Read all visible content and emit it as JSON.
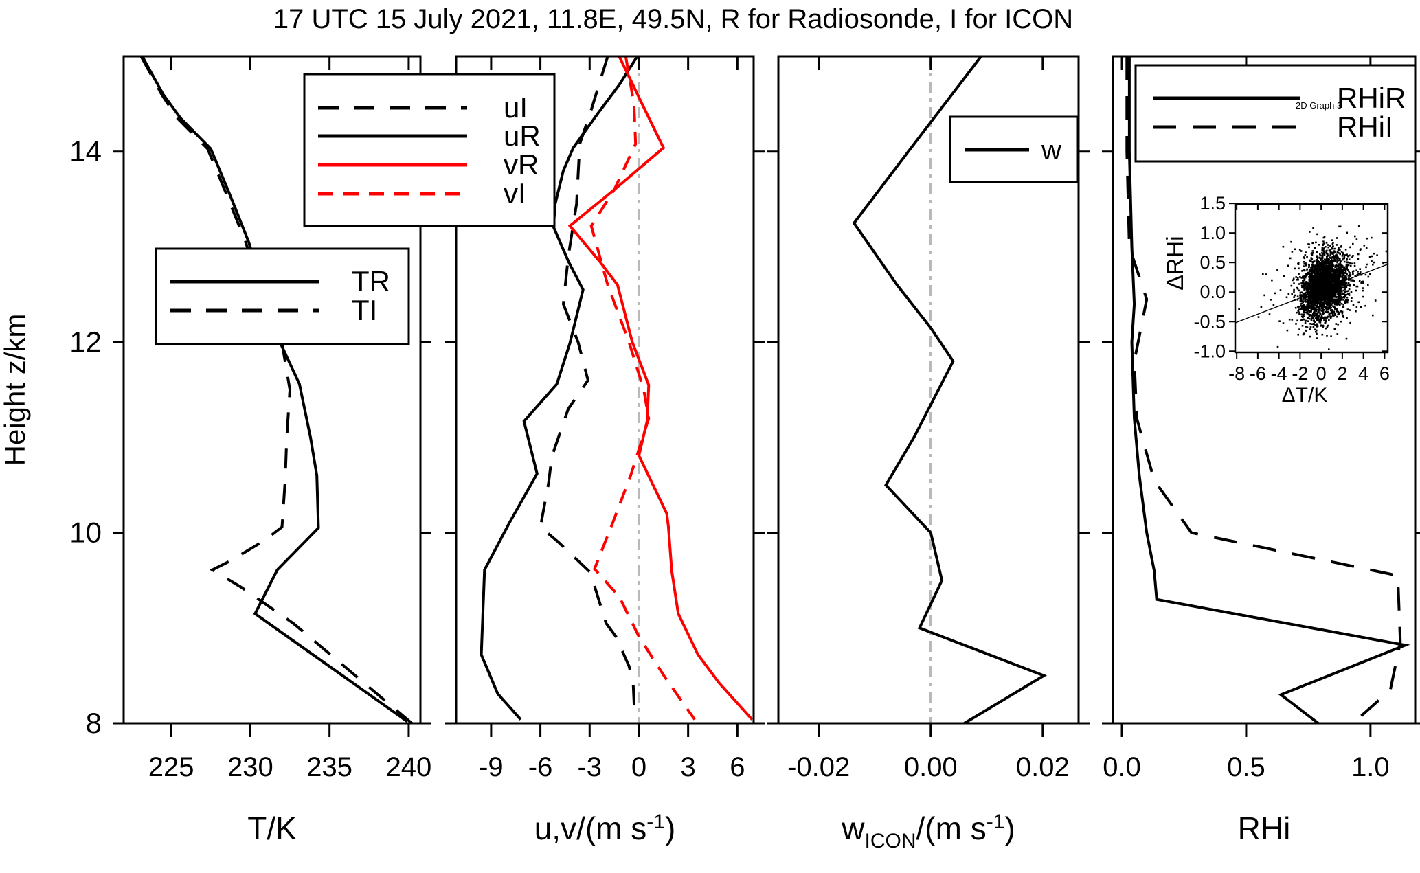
{
  "title": "17 UTC 15 July 2021, 11.8E, 49.5N, R for Radiosonde, I for ICON",
  "height_axis": {
    "label": "Height z/km",
    "ticks": [
      {
        "v": 14,
        "label": "14"
      },
      {
        "v": 12,
        "label": "12"
      },
      {
        "v": 10,
        "label": "10"
      },
      {
        "v": 8,
        "label": "8"
      }
    ],
    "range": [
      8,
      15
    ]
  },
  "colors": {
    "black": "#000000",
    "red": "#fe0000",
    "zero_line_gray": "#b9b9b9"
  },
  "chart_data": [
    {
      "panel": "temperature",
      "type": "line",
      "xlabel_parts": [
        {
          "text": "T/K"
        }
      ],
      "xlim": [
        222.0,
        240.74
      ],
      "x_ticks": [
        {
          "v": 225,
          "label": "225"
        },
        {
          "v": 230,
          "label": "230"
        },
        {
          "v": 235,
          "label": "235"
        },
        {
          "v": 240,
          "label": "240"
        }
      ],
      "ylabel": "Height z/km",
      "ylim": [
        8,
        15
      ],
      "zero_line": false,
      "legend": {
        "entries": [
          {
            "label": "TR",
            "color": "#000000",
            "style": "solid"
          },
          {
            "label": "TI",
            "color": "#000000",
            "style": "long-dash"
          }
        ]
      },
      "series": [
        {
          "name": "TR",
          "color": "#000000",
          "style": "solid",
          "points": [
            [
              223.2,
              15.0
            ],
            [
              223.3,
              14.96
            ],
            [
              224.5,
              14.6
            ],
            [
              225.6,
              14.35
            ],
            [
              227.5,
              14.03
            ],
            [
              228.7,
              13.55
            ],
            [
              229.9,
              13.05
            ],
            [
              230.9,
              12.5
            ],
            [
              231.9,
              11.99
            ],
            [
              233.1,
              11.56
            ],
            [
              233.8,
              11.0
            ],
            [
              234.2,
              10.6
            ],
            [
              234.3,
              10.05
            ],
            [
              231.7,
              9.61
            ],
            [
              230.3,
              9.15
            ],
            [
              239.9,
              8.02
            ]
          ]
        },
        {
          "name": "TI",
          "color": "#000000",
          "style": "long-dash",
          "points": [
            [
              223.1,
              15.0
            ],
            [
              224.4,
              14.6
            ],
            [
              225.4,
              14.35
            ],
            [
              227.3,
              14.03
            ],
            [
              228.5,
              13.55
            ],
            [
              229.7,
              13.05
            ],
            [
              230.8,
              12.5
            ],
            [
              232.0,
              11.99
            ],
            [
              232.5,
              11.5
            ],
            [
              232.3,
              11.0
            ],
            [
              232.2,
              10.55
            ],
            [
              232.0,
              10.06
            ],
            [
              230.9,
              9.92
            ],
            [
              228.8,
              9.71
            ],
            [
              227.6,
              9.61
            ],
            [
              229.4,
              9.43
            ],
            [
              232.7,
              9.05
            ],
            [
              240.2,
              8.0
            ]
          ]
        }
      ]
    },
    {
      "panel": "wind",
      "type": "line",
      "xlabel_parts": [
        {
          "text": "u,v/(m s"
        },
        {
          "text": "-1",
          "pos": "sup"
        },
        {
          "text": ")"
        }
      ],
      "xlim": [
        -11.13,
        6.99
      ],
      "x_ticks": [
        {
          "v": -9,
          "label": "-9"
        },
        {
          "v": -6,
          "label": "-6"
        },
        {
          "v": -3,
          "label": "-3"
        },
        {
          "v": 0,
          "label": "0"
        },
        {
          "v": 3,
          "label": "3"
        },
        {
          "v": 6,
          "label": "6"
        }
      ],
      "ylabel": "Height z/km",
      "ylim": [
        8,
        15
      ],
      "zero_line": true,
      "legend": {
        "entries": [
          {
            "label": "uI",
            "color": "#000000",
            "style": "long-dash"
          },
          {
            "label": "uR",
            "color": "#000000",
            "style": "solid"
          },
          {
            "label": "vR",
            "color": "#fe0000",
            "style": "solid"
          },
          {
            "label": "vI",
            "color": "#fe0000",
            "style": "short-dash"
          }
        ]
      },
      "series": [
        {
          "name": "uI",
          "color": "#000000",
          "style": "long-dash",
          "points": [
            [
              -1.9,
              15.0
            ],
            [
              -2.9,
              14.44
            ],
            [
              -3.6,
              14.08
            ],
            [
              -3.8,
              13.45
            ],
            [
              -4.3,
              12.9
            ],
            [
              -4.6,
              12.4
            ],
            [
              -3.7,
              12.0
            ],
            [
              -3.1,
              11.6
            ],
            [
              -4.3,
              11.3
            ],
            [
              -5.3,
              10.8
            ],
            [
              -5.5,
              10.52
            ],
            [
              -6.0,
              10.06
            ],
            [
              -4.9,
              9.9
            ],
            [
              -3.0,
              9.59
            ],
            [
              -2.7,
              9.44
            ],
            [
              -2.0,
              9.05
            ],
            [
              -1.4,
              8.91
            ],
            [
              -0.6,
              8.6
            ],
            [
              -0.35,
              8.43
            ],
            [
              -0.25,
              8.04
            ]
          ]
        },
        {
          "name": "uR",
          "color": "#000000",
          "style": "solid",
          "points": [
            [
              -0.1,
              15.0
            ],
            [
              -1.2,
              14.7
            ],
            [
              -2.5,
              14.4
            ],
            [
              -4.0,
              14.04
            ],
            [
              -4.6,
              13.8
            ],
            [
              -5.1,
              13.45
            ],
            [
              -5.2,
              13.21
            ],
            [
              -4.3,
              12.85
            ],
            [
              -3.4,
              12.55
            ],
            [
              -4.2,
              11.99
            ],
            [
              -5.0,
              11.56
            ],
            [
              -7.0,
              11.17
            ],
            [
              -6.2,
              10.62
            ],
            [
              -7.9,
              10.1
            ],
            [
              -9.4,
              9.61
            ],
            [
              -9.6,
              8.72
            ],
            [
              -8.6,
              8.31
            ],
            [
              -7.2,
              8.04
            ]
          ]
        },
        {
          "name": "vR",
          "color": "#fe0000",
          "style": "solid",
          "points": [
            [
              -1.2,
              15.0
            ],
            [
              0.2,
              14.5
            ],
            [
              1.5,
              14.04
            ],
            [
              -1.5,
              13.6
            ],
            [
              -4.2,
              13.22
            ],
            [
              -2.4,
              12.85
            ],
            [
              -1.3,
              12.6
            ],
            [
              -0.4,
              12.0
            ],
            [
              0.6,
              11.55
            ],
            [
              0.5,
              11.17
            ],
            [
              0.0,
              10.81
            ],
            [
              1.7,
              10.2
            ],
            [
              1.8,
              10.06
            ],
            [
              2.0,
              9.6
            ],
            [
              2.4,
              9.15
            ],
            [
              3.6,
              8.72
            ],
            [
              4.9,
              8.42
            ],
            [
              6.9,
              8.04
            ]
          ]
        },
        {
          "name": "vI",
          "color": "#fe0000",
          "style": "short-dash",
          "points": [
            [
              -0.8,
              15.0
            ],
            [
              -0.3,
              14.5
            ],
            [
              -0.2,
              14.08
            ],
            [
              -1.5,
              13.6
            ],
            [
              -2.9,
              13.22
            ],
            [
              -1.9,
              12.6
            ],
            [
              -0.6,
              12.0
            ],
            [
              0.3,
              11.5
            ],
            [
              0.6,
              11.2
            ],
            [
              -0.5,
              10.6
            ],
            [
              -1.6,
              10.1
            ],
            [
              -2.7,
              9.62
            ],
            [
              -1.2,
              9.33
            ],
            [
              0.0,
              8.91
            ],
            [
              1.6,
              8.48
            ],
            [
              3.4,
              8.04
            ]
          ]
        }
      ]
    },
    {
      "panel": "vertical-velocity",
      "type": "line",
      "xlabel_parts": [
        {
          "text": "w"
        },
        {
          "text": "ICON",
          "pos": "sub"
        },
        {
          "text": "/(m s"
        },
        {
          "text": "-1",
          "pos": "sup"
        },
        {
          "text": ")"
        }
      ],
      "xlim": [
        -0.0272,
        0.0264
      ],
      "x_ticks": [
        {
          "v": -0.02,
          "label": "-0.02"
        },
        {
          "v": 0,
          "label": "0.00"
        },
        {
          "v": 0.02,
          "label": "0.02"
        }
      ],
      "ylabel": "Height z/km",
      "ylim": [
        8,
        15
      ],
      "zero_line": true,
      "legend": {
        "entries": [
          {
            "label": "w",
            "color": "#000000",
            "style": "solid"
          }
        ]
      },
      "series": [
        {
          "name": "w",
          "color": "#000000",
          "style": "solid",
          "points": [
            [
              0.009,
              15.0
            ],
            [
              -0.004,
              14.0
            ],
            [
              -0.0137,
              13.25
            ],
            [
              -0.006,
              12.6
            ],
            [
              0.0,
              12.15
            ],
            [
              0.004,
              11.8
            ],
            [
              -0.003,
              11.0
            ],
            [
              -0.008,
              10.5
            ],
            [
              0.0,
              10.0
            ],
            [
              0.002,
              9.5
            ],
            [
              -0.002,
              9.0
            ],
            [
              0.0202,
              8.5
            ],
            [
              0.006,
              8.0
            ]
          ]
        }
      ]
    },
    {
      "panel": "rhi",
      "type": "line",
      "xlabel_parts": [
        {
          "text": "RHi"
        }
      ],
      "xlim": [
        -0.036,
        1.18
      ],
      "x_ticks": [
        {
          "v": 0,
          "label": "0.0"
        },
        {
          "v": 0.5,
          "label": "0.5"
        },
        {
          "v": 1.0,
          "label": "1.0"
        }
      ],
      "ylabel": "Height z/km",
      "ylim": [
        8,
        15
      ],
      "zero_line": false,
      "legend": {
        "entries": [
          {
            "label": "RHiR",
            "color": "#000000",
            "style": "solid"
          },
          {
            "label": "RHiI",
            "color": "#000000",
            "style": "rhi-dash"
          }
        ],
        "note": "2D Graph 3"
      },
      "series": [
        {
          "name": "RHiR",
          "color": "#000000",
          "style": "solid",
          "points": [
            [
              0.03,
              15.0
            ],
            [
              0.03,
              14.0
            ],
            [
              0.04,
              13.0
            ],
            [
              0.05,
              12.4
            ],
            [
              0.04,
              12.0
            ],
            [
              0.05,
              11.2
            ],
            [
              0.07,
              10.6
            ],
            [
              0.1,
              10.0
            ],
            [
              0.13,
              9.6
            ],
            [
              0.14,
              9.3
            ],
            [
              1.14,
              8.82
            ],
            [
              0.64,
              8.3
            ],
            [
              0.79,
              8.0
            ]
          ]
        },
        {
          "name": "RHiI",
          "color": "#000000",
          "style": "rhi-dash",
          "points": [
            [
              0.02,
              15.0
            ],
            [
              0.02,
              14.0
            ],
            [
              0.03,
              13.0
            ],
            [
              0.1,
              12.45
            ],
            [
              0.05,
              11.8
            ],
            [
              0.06,
              11.2
            ],
            [
              0.13,
              10.55
            ],
            [
              0.28,
              10.0
            ],
            [
              1.11,
              9.55
            ],
            [
              1.12,
              8.85
            ],
            [
              1.08,
              8.35
            ],
            [
              0.93,
              8.0
            ]
          ]
        }
      ]
    },
    {
      "panel": "delta-scatter-inset",
      "type": "scatter",
      "xlabel": "ΔT/K",
      "ylabel": "ΔRHi",
      "xlim": [
        -8.14,
        6.3
      ],
      "ylim": [
        -1.02,
        1.49
      ],
      "x_ticks": [
        {
          "v": -8,
          "label": "-8"
        },
        {
          "v": -6,
          "label": "-6"
        },
        {
          "v": -4,
          "label": "-4"
        },
        {
          "v": -2,
          "label": "-2"
        },
        {
          "v": 0,
          "label": "0"
        },
        {
          "v": 2,
          "label": "2"
        },
        {
          "v": 4,
          "label": "4"
        },
        {
          "v": 6,
          "label": "6"
        }
      ],
      "y_ticks": [
        {
          "v": 1.5,
          "label": "1.5"
        },
        {
          "v": 1.0,
          "label": "1.0"
        },
        {
          "v": 0.5,
          "label": "0.5"
        },
        {
          "v": 0.0,
          "label": "0.0"
        },
        {
          "v": -0.5,
          "label": "-0.5"
        },
        {
          "v": -1.0,
          "label": "-1.0"
        }
      ],
      "regression_line": {
        "x": [
          -8.14,
          6.3
        ],
        "y": [
          -0.52,
          0.47
        ]
      },
      "scatter_cloud": {
        "n": 2800,
        "seed": 42,
        "center": [
          0.3,
          0.09
        ],
        "sd": [
          1.05,
          0.26
        ],
        "tail_fraction": 0.15,
        "tail_sd": [
          2.3,
          0.42
        ],
        "slope": 0.05,
        "x_clip": [
          -8.1,
          6.2
        ],
        "y_clip": [
          -0.99,
          1.12
        ]
      }
    }
  ]
}
